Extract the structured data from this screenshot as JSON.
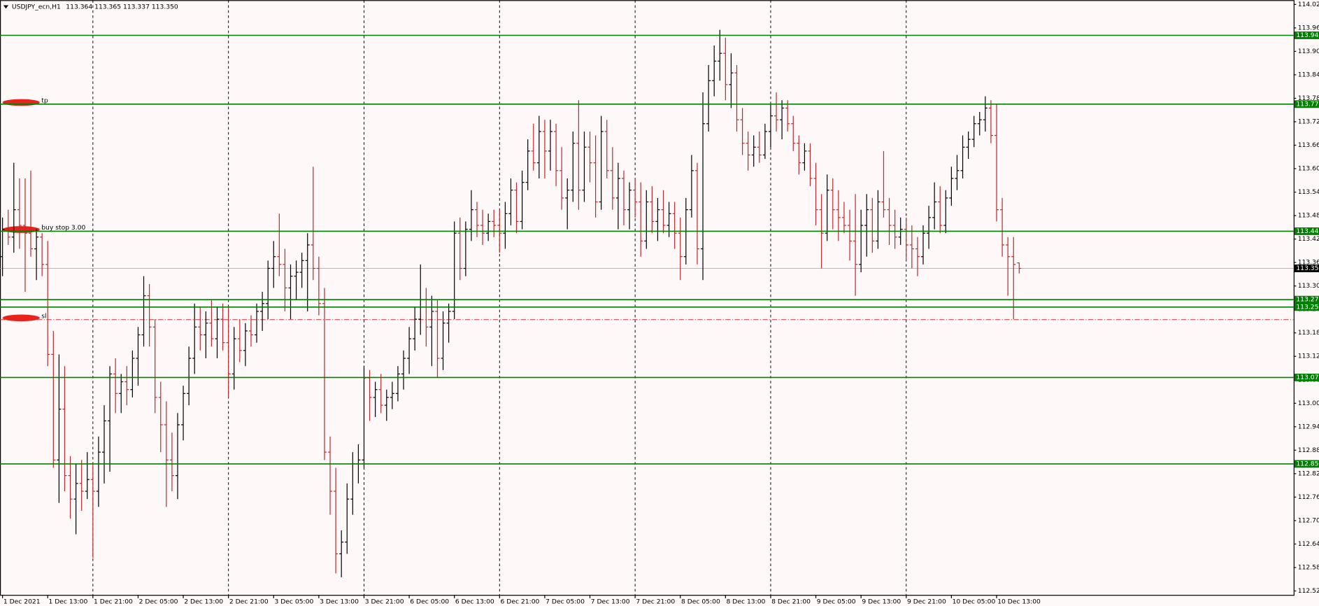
{
  "header": {
    "symbol": "USDJPY_ecn,H1",
    "quote": "113.364 113.365 113.337 113.350"
  },
  "chart_data": {
    "type": "ohlc",
    "up_color": "#000000",
    "down_color": "#c0282d",
    "grid": true,
    "ylim": [
      112.515,
      114.036
    ],
    "yticks": [
      114.025,
      113.965,
      113.905,
      113.845,
      113.785,
      113.725,
      113.665,
      113.605,
      113.545,
      113.485,
      113.425,
      113.365,
      113.305,
      113.245,
      113.185,
      113.125,
      113.065,
      113.005,
      112.945,
      112.885,
      112.825,
      112.765,
      112.705,
      112.645,
      112.585,
      112.525
    ],
    "levels": [
      {
        "value": 113.946,
        "label": "113.946"
      },
      {
        "value": 113.77,
        "label": "113.770"
      },
      {
        "value": 113.445,
        "label": "113.445"
      },
      {
        "value": 113.27,
        "label": "113.270"
      },
      {
        "value": 113.251,
        "label": "113.251"
      },
      {
        "value": 113.071,
        "label": "113.071"
      },
      {
        "value": 112.85,
        "label": "112.850"
      }
    ],
    "level_color": "#008000",
    "price_line": {
      "value": 113.35,
      "label": "113.350"
    },
    "orders": [
      {
        "text": "tp",
        "value": 113.77,
        "color": "#008000"
      },
      {
        "text": "buy stop 3.00",
        "value": 113.445,
        "color": "#008000"
      },
      {
        "text": "sl",
        "value": 113.219,
        "color": "#c83232"
      }
    ],
    "categories": [
      "1 Dec 2021",
      null,
      null,
      null,
      null,
      null,
      null,
      null,
      "1 Dec 13:00",
      null,
      null,
      null,
      null,
      null,
      null,
      null,
      "1 Dec 21:00",
      null,
      null,
      null,
      null,
      null,
      null,
      null,
      "2 Dec 05:00",
      null,
      null,
      null,
      null,
      null,
      null,
      null,
      "2 Dec 13:00",
      null,
      null,
      null,
      null,
      null,
      null,
      null,
      "2 Dec 21:00",
      null,
      null,
      null,
      null,
      null,
      null,
      null,
      "3 Dec 05:00",
      null,
      null,
      null,
      null,
      null,
      null,
      null,
      "3 Dec 13:00",
      null,
      null,
      null,
      null,
      null,
      null,
      null,
      "3 Dec 21:00",
      null,
      null,
      null,
      null,
      null,
      null,
      null,
      "6 Dec 05:00",
      null,
      null,
      null,
      null,
      null,
      null,
      null,
      "6 Dec 13:00",
      null,
      null,
      null,
      null,
      null,
      null,
      null,
      "6 Dec 21:00",
      null,
      null,
      null,
      null,
      null,
      null,
      null,
      "7 Dec 05:00",
      null,
      null,
      null,
      null,
      null,
      null,
      null,
      "7 Dec 13:00",
      null,
      null,
      null,
      null,
      null,
      null,
      null,
      "7 Dec 21:00",
      null,
      null,
      null,
      null,
      null,
      null,
      null,
      "8 Dec 05:00",
      null,
      null,
      null,
      null,
      null,
      null,
      null,
      "8 Dec 13:00",
      null,
      null,
      null,
      null,
      null,
      null,
      null,
      "8 Dec 21:00",
      null,
      null,
      null,
      null,
      null,
      null,
      null,
      "9 Dec 05:00",
      null,
      null,
      null,
      null,
      null,
      null,
      null,
      "9 Dec 13:00",
      null,
      null,
      null,
      null,
      null,
      null,
      null,
      "9 Dec 21:00",
      null,
      null,
      null,
      null,
      null,
      null,
      null,
      "10 Dec 05:00",
      null,
      null,
      null,
      null,
      null,
      null,
      null,
      "10 Dec 13:00",
      null,
      null,
      null,
      null
    ],
    "ohlc": [
      [
        113.38,
        113.48,
        113.33,
        113.45
      ],
      [
        113.45,
        113.5,
        113.41,
        113.43
      ],
      [
        113.43,
        113.62,
        113.39,
        113.5
      ],
      [
        113.5,
        113.58,
        113.4,
        113.46
      ],
      [
        113.46,
        113.58,
        113.29,
        113.44
      ],
      [
        113.44,
        113.6,
        113.38,
        113.4
      ],
      [
        113.4,
        113.45,
        113.32,
        113.43
      ],
      [
        113.43,
        113.44,
        113.33,
        113.36
      ],
      [
        113.36,
        113.42,
        113.1,
        113.13
      ],
      [
        113.13,
        113.19,
        112.84,
        112.86
      ],
      [
        112.86,
        113.13,
        112.75,
        112.99
      ],
      [
        112.99,
        113.1,
        112.78,
        112.82
      ],
      [
        112.82,
        112.87,
        112.71,
        112.76
      ],
      [
        112.76,
        112.85,
        112.67,
        112.8
      ],
      [
        112.8,
        112.86,
        112.73,
        112.78
      ],
      [
        112.78,
        112.88,
        112.76,
        112.81
      ],
      [
        112.81,
        112.85,
        112.61,
        112.78
      ],
      [
        112.78,
        112.92,
        112.74,
        112.88
      ],
      [
        112.88,
        113.0,
        112.8,
        112.96
      ],
      [
        112.96,
        113.1,
        112.83,
        113.08
      ],
      [
        113.08,
        113.12,
        112.98,
        113.03
      ],
      [
        113.03,
        113.08,
        112.98,
        113.06
      ],
      [
        113.06,
        113.1,
        113.0,
        113.04
      ],
      [
        113.04,
        113.14,
        113.02,
        113.12
      ],
      [
        113.12,
        113.2,
        113.05,
        113.18
      ],
      [
        113.18,
        113.33,
        113.15,
        113.28
      ],
      [
        113.28,
        113.31,
        113.15,
        113.2
      ],
      [
        113.2,
        113.22,
        112.98,
        113.02
      ],
      [
        113.02,
        113.06,
        112.88,
        112.95
      ],
      [
        112.95,
        113.01,
        112.74,
        112.86
      ],
      [
        112.86,
        112.93,
        112.78,
        112.82
      ],
      [
        112.82,
        112.98,
        112.76,
        112.95
      ],
      [
        112.95,
        113.05,
        112.91,
        113.03
      ],
      [
        113.03,
        113.15,
        113.0,
        113.12
      ],
      [
        113.12,
        113.26,
        113.08,
        113.2
      ],
      [
        113.2,
        113.25,
        113.14,
        113.18
      ],
      [
        113.18,
        113.24,
        113.12,
        113.21
      ],
      [
        113.21,
        113.27,
        113.15,
        113.17
      ],
      [
        113.17,
        113.25,
        113.12,
        113.22
      ],
      [
        113.22,
        113.26,
        113.14,
        113.16
      ],
      [
        113.16,
        113.25,
        113.02,
        113.08
      ],
      [
        113.08,
        113.2,
        113.04,
        113.17
      ],
      [
        113.17,
        113.22,
        113.11,
        113.14
      ],
      [
        113.14,
        113.21,
        113.1,
        113.19
      ],
      [
        113.19,
        113.23,
        113.15,
        113.18
      ],
      [
        113.18,
        113.26,
        113.16,
        113.24
      ],
      [
        113.24,
        113.29,
        113.19,
        113.26
      ],
      [
        113.26,
        113.37,
        113.22,
        113.35
      ],
      [
        113.35,
        113.42,
        113.3,
        113.38
      ],
      [
        113.38,
        113.49,
        113.33,
        113.36
      ],
      [
        113.36,
        113.4,
        113.24,
        113.3
      ],
      [
        113.3,
        113.36,
        113.22,
        113.33
      ],
      [
        113.33,
        113.37,
        113.27,
        113.34
      ],
      [
        113.34,
        113.39,
        113.3,
        113.37
      ],
      [
        113.37,
        113.44,
        113.24,
        113.41
      ],
      [
        113.41,
        113.61,
        113.32,
        113.35
      ],
      [
        113.35,
        113.38,
        113.23,
        113.26
      ],
      [
        113.26,
        113.3,
        112.86,
        112.88
      ],
      [
        112.88,
        112.92,
        112.72,
        112.78
      ],
      [
        112.78,
        112.84,
        112.57,
        112.62
      ],
      [
        112.62,
        112.68,
        112.56,
        112.65
      ],
      [
        112.65,
        112.8,
        112.62,
        112.76
      ],
      [
        112.76,
        112.88,
        112.72,
        112.85
      ],
      [
        112.85,
        112.9,
        112.8,
        112.86
      ],
      [
        112.86,
        113.1,
        112.84,
        113.07
      ],
      [
        113.07,
        113.09,
        112.96,
        113.02
      ],
      [
        113.02,
        113.06,
        112.97,
        113.04
      ],
      [
        113.04,
        113.08,
        112.98,
        113.0
      ],
      [
        113.0,
        113.04,
        112.96,
        113.02
      ],
      [
        113.02,
        113.06,
        112.99,
        113.03
      ],
      [
        113.03,
        113.1,
        113.01,
        113.08
      ],
      [
        113.08,
        113.14,
        113.04,
        113.12
      ],
      [
        113.12,
        113.2,
        113.08,
        113.17
      ],
      [
        113.17,
        113.25,
        113.14,
        113.22
      ],
      [
        113.22,
        113.36,
        113.18,
        113.27
      ],
      [
        113.27,
        113.3,
        113.15,
        113.2
      ],
      [
        113.2,
        113.28,
        113.1,
        113.24
      ],
      [
        113.24,
        113.27,
        113.07,
        113.12
      ],
      [
        113.12,
        113.24,
        113.09,
        113.21
      ],
      [
        113.21,
        113.26,
        113.16,
        113.24
      ],
      [
        113.24,
        113.47,
        113.22,
        113.44
      ],
      [
        113.44,
        113.48,
        113.32,
        113.35
      ],
      [
        113.35,
        113.47,
        113.33,
        113.45
      ],
      [
        113.45,
        113.55,
        113.42,
        113.5
      ],
      [
        113.5,
        113.52,
        113.43,
        113.46
      ],
      [
        113.46,
        113.5,
        113.41,
        113.44
      ],
      [
        113.44,
        113.49,
        113.42,
        113.47
      ],
      [
        113.47,
        113.5,
        113.43,
        113.46
      ],
      [
        113.46,
        113.5,
        113.39,
        113.44
      ],
      [
        113.44,
        113.52,
        113.4,
        113.49
      ],
      [
        113.49,
        113.58,
        113.46,
        113.55
      ],
      [
        113.55,
        113.57,
        113.44,
        113.47
      ],
      [
        113.47,
        113.6,
        113.45,
        113.57
      ],
      [
        113.57,
        113.68,
        113.55,
        113.65
      ],
      [
        113.65,
        113.72,
        113.6,
        113.62
      ],
      [
        113.62,
        113.74,
        113.58,
        113.7
      ],
      [
        113.7,
        113.73,
        113.58,
        113.65
      ],
      [
        113.65,
        113.73,
        113.6,
        113.7
      ],
      [
        113.7,
        113.72,
        113.56,
        113.6
      ],
      [
        113.6,
        113.66,
        113.5,
        113.53
      ],
      [
        113.53,
        113.58,
        113.45,
        113.55
      ],
      [
        113.55,
        113.7,
        113.52,
        113.67
      ],
      [
        113.67,
        113.78,
        113.5,
        113.55
      ],
      [
        113.55,
        113.7,
        113.52,
        113.66
      ],
      [
        113.66,
        113.7,
        113.57,
        113.62
      ],
      [
        113.62,
        113.69,
        113.48,
        113.52
      ],
      [
        113.52,
        113.74,
        113.5,
        113.7
      ],
      [
        113.7,
        113.73,
        113.58,
        113.6
      ],
      [
        113.6,
        113.66,
        113.5,
        113.53
      ],
      [
        113.53,
        113.62,
        113.45,
        113.58
      ],
      [
        113.58,
        113.6,
        113.46,
        113.5
      ],
      [
        113.5,
        113.57,
        113.45,
        113.55
      ],
      [
        113.55,
        113.58,
        113.48,
        113.52
      ],
      [
        113.52,
        113.57,
        113.38,
        113.42
      ],
      [
        113.42,
        113.55,
        113.4,
        113.52
      ],
      [
        113.52,
        113.56,
        113.44,
        113.47
      ],
      [
        113.47,
        113.53,
        113.42,
        113.5
      ],
      [
        113.5,
        113.55,
        113.44,
        113.46
      ],
      [
        113.46,
        113.52,
        113.43,
        113.49
      ],
      [
        113.49,
        113.52,
        113.4,
        113.44
      ],
      [
        113.44,
        113.48,
        113.32,
        113.38
      ],
      [
        113.38,
        113.53,
        113.36,
        113.5
      ],
      [
        113.5,
        113.64,
        113.48,
        113.6
      ],
      [
        113.6,
        113.62,
        113.36,
        113.4
      ],
      [
        113.4,
        113.8,
        113.32,
        113.72
      ],
      [
        113.72,
        113.87,
        113.7,
        113.83
      ],
      [
        113.83,
        113.92,
        113.79,
        113.88
      ],
      [
        113.88,
        113.96,
        113.83,
        113.9
      ],
      [
        113.9,
        113.94,
        113.78,
        113.82
      ],
      [
        113.82,
        113.9,
        113.76,
        113.85
      ],
      [
        113.85,
        113.87,
        113.7,
        113.73
      ],
      [
        113.73,
        113.76,
        113.64,
        113.67
      ],
      [
        113.67,
        113.7,
        113.6,
        113.64
      ],
      [
        113.64,
        113.69,
        113.61,
        113.66
      ],
      [
        113.66,
        113.7,
        113.62,
        113.64
      ],
      [
        113.64,
        113.72,
        113.63,
        113.7
      ],
      [
        113.7,
        113.77,
        113.66,
        113.74
      ],
      [
        113.74,
        113.8,
        113.7,
        113.73
      ],
      [
        113.73,
        113.78,
        113.68,
        113.76
      ],
      [
        113.76,
        113.78,
        113.7,
        113.72
      ],
      [
        113.72,
        113.74,
        113.65,
        113.67
      ],
      [
        113.67,
        113.69,
        113.59,
        113.62
      ],
      [
        113.62,
        113.67,
        113.6,
        113.65
      ],
      [
        113.65,
        113.67,
        113.56,
        113.58
      ],
      [
        113.58,
        113.62,
        113.46,
        113.5
      ],
      [
        113.5,
        113.54,
        113.35,
        113.44
      ],
      [
        113.44,
        113.59,
        113.42,
        113.55
      ],
      [
        113.55,
        113.58,
        113.45,
        113.5
      ],
      [
        113.5,
        113.55,
        113.42,
        113.48
      ],
      [
        113.48,
        113.52,
        113.44,
        113.46
      ],
      [
        113.46,
        113.5,
        113.37,
        113.42
      ],
      [
        113.42,
        113.54,
        113.28,
        113.36
      ],
      [
        113.36,
        113.5,
        113.34,
        113.46
      ],
      [
        113.46,
        113.54,
        113.38,
        113.5
      ],
      [
        113.5,
        113.53,
        113.39,
        113.42
      ],
      [
        113.42,
        113.55,
        113.4,
        113.52
      ],
      [
        113.52,
        113.65,
        113.48,
        113.5
      ],
      [
        113.5,
        113.53,
        113.41,
        113.46
      ],
      [
        113.46,
        113.5,
        113.4,
        113.43
      ],
      [
        113.43,
        113.48,
        113.41,
        113.45
      ],
      [
        113.45,
        113.48,
        113.37,
        113.41
      ],
      [
        113.41,
        113.46,
        113.35,
        113.4
      ],
      [
        113.4,
        113.43,
        113.33,
        113.38
      ],
      [
        113.38,
        113.46,
        113.36,
        113.44
      ],
      [
        113.44,
        113.51,
        113.4,
        113.48
      ],
      [
        113.48,
        113.57,
        113.45,
        113.52
      ],
      [
        113.52,
        113.56,
        113.44,
        113.46
      ],
      [
        113.46,
        113.55,
        113.44,
        113.53
      ],
      [
        113.53,
        113.61,
        113.51,
        113.58
      ],
      [
        113.58,
        113.64,
        113.55,
        113.6
      ],
      [
        113.6,
        113.69,
        113.58,
        113.66
      ],
      [
        113.66,
        113.7,
        113.63,
        113.68
      ],
      [
        113.68,
        113.74,
        113.66,
        113.72
      ],
      [
        113.72,
        113.75,
        113.69,
        113.73
      ],
      [
        113.73,
        113.79,
        113.7,
        113.76
      ],
      [
        113.76,
        113.78,
        113.67,
        113.69
      ],
      [
        113.69,
        113.77,
        113.47,
        113.5
      ],
      [
        113.5,
        113.53,
        113.38,
        113.41
      ],
      [
        113.41,
        113.43,
        113.28,
        113.38
      ],
      [
        113.38,
        113.43,
        113.22,
        113.36
      ],
      [
        113.364,
        113.365,
        113.337,
        113.35
      ]
    ]
  }
}
